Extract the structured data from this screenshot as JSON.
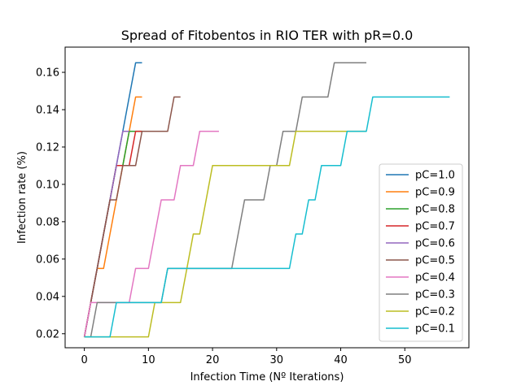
{
  "chart_data": {
    "type": "line",
    "title": "Spread of Fitobentos in RIO TER with pR=0.0",
    "xlabel": "Infection Time (Nº Iterations)",
    "ylabel": "Infection rate (%)",
    "xlim": [
      -3,
      60
    ],
    "ylim": [
      0.0125,
      0.1735
    ],
    "xticks": [
      0,
      10,
      20,
      30,
      40,
      50
    ],
    "yticks": [
      0.02,
      0.04,
      0.06,
      0.08,
      0.1,
      0.12,
      0.14,
      0.16
    ],
    "ytick_labels": [
      "0.02",
      "0.04",
      "0.06",
      "0.08",
      "0.10",
      "0.12",
      "0.14",
      "0.16"
    ],
    "grid": false,
    "legend_position": "lower-right",
    "series": [
      {
        "name": "pC=1.0",
        "color": "#1f77b4",
        "x": [
          0,
          1,
          2,
          3,
          4,
          5,
          6,
          7,
          8,
          9
        ],
        "y": [
          0.0183,
          0.0367,
          0.055,
          0.0734,
          0.0917,
          0.1101,
          0.1284,
          0.1468,
          0.1651,
          0.1651
        ]
      },
      {
        "name": "pC=0.9",
        "color": "#ff7f0e",
        "x": [
          0,
          1,
          2,
          3,
          4,
          5,
          6,
          7,
          8,
          9
        ],
        "y": [
          0.0183,
          0.0367,
          0.055,
          0.055,
          0.0734,
          0.0917,
          0.1101,
          0.1284,
          0.1468,
          0.1468
        ]
      },
      {
        "name": "pC=0.8",
        "color": "#2ca02c",
        "x": [
          0,
          1,
          2,
          3,
          4,
          5,
          6,
          7,
          8,
          9
        ],
        "y": [
          0.0183,
          0.0367,
          0.055,
          0.0734,
          0.0917,
          0.1101,
          0.1101,
          0.1284,
          0.1284,
          0.1284
        ]
      },
      {
        "name": "pC=0.7",
        "color": "#d62728",
        "x": [
          0,
          1,
          2,
          3,
          4,
          5,
          6,
          7,
          8,
          9
        ],
        "y": [
          0.0183,
          0.0367,
          0.055,
          0.0734,
          0.0917,
          0.1101,
          0.1101,
          0.1101,
          0.1284,
          0.1284
        ]
      },
      {
        "name": "pC=0.6",
        "color": "#9467bd",
        "x": [
          0,
          1,
          2,
          3,
          4,
          5,
          6,
          7
        ],
        "y": [
          0.0183,
          0.0367,
          0.055,
          0.0734,
          0.0917,
          0.1101,
          0.1284,
          0.1284
        ]
      },
      {
        "name": "pC=0.5",
        "color": "#8c564b",
        "x": [
          0,
          1,
          2,
          3,
          4,
          5,
          6,
          7,
          8,
          9,
          10,
          11,
          12,
          13,
          14,
          15
        ],
        "y": [
          0.0183,
          0.0367,
          0.055,
          0.0734,
          0.0917,
          0.0917,
          0.1101,
          0.1101,
          0.1101,
          0.1284,
          0.1284,
          0.1284,
          0.1284,
          0.1284,
          0.1468,
          0.1468
        ]
      },
      {
        "name": "pC=0.4",
        "color": "#e377c2",
        "x": [
          0,
          1,
          2,
          3,
          4,
          5,
          6,
          7,
          8,
          9,
          10,
          11,
          12,
          13,
          14,
          15,
          16,
          17,
          18,
          19,
          20,
          21
        ],
        "y": [
          0.0183,
          0.0367,
          0.0367,
          0.0367,
          0.0367,
          0.0367,
          0.0367,
          0.0367,
          0.055,
          0.055,
          0.055,
          0.0734,
          0.0917,
          0.0917,
          0.0917,
          0.1101,
          0.1101,
          0.1101,
          0.1284,
          0.1284,
          0.1284,
          0.1284
        ]
      },
      {
        "name": "pC=0.3",
        "color": "#7f7f7f",
        "x": [
          0,
          1,
          2,
          3,
          4,
          5,
          6,
          7,
          8,
          9,
          10,
          11,
          12,
          13,
          14,
          15,
          16,
          17,
          18,
          19,
          20,
          21,
          22,
          23,
          24,
          25,
          26,
          27,
          28,
          29,
          30,
          31,
          32,
          33,
          34,
          35,
          36,
          37,
          38,
          39,
          40,
          41,
          42,
          43,
          44
        ],
        "y": [
          0.0183,
          0.0183,
          0.0367,
          0.0367,
          0.0367,
          0.0367,
          0.0367,
          0.0367,
          0.0367,
          0.0367,
          0.0367,
          0.0367,
          0.0367,
          0.055,
          0.055,
          0.055,
          0.055,
          0.055,
          0.055,
          0.055,
          0.055,
          0.055,
          0.055,
          0.055,
          0.0734,
          0.0917,
          0.0917,
          0.0917,
          0.0917,
          0.1101,
          0.1101,
          0.1284,
          0.1284,
          0.1284,
          0.1468,
          0.1468,
          0.1468,
          0.1468,
          0.1468,
          0.1651,
          0.1651,
          0.1651,
          0.1651,
          0.1651,
          0.1651
        ]
      },
      {
        "name": "pC=0.2",
        "color": "#bcbd22",
        "x": [
          0,
          1,
          2,
          3,
          4,
          5,
          6,
          7,
          8,
          9,
          10,
          11,
          12,
          13,
          14,
          15,
          16,
          17,
          18,
          19,
          20,
          21,
          22,
          23,
          24,
          25,
          26,
          27,
          28,
          29,
          30,
          31,
          32,
          33,
          34,
          35,
          36,
          37,
          38,
          39,
          40,
          41,
          42,
          43,
          44
        ],
        "y": [
          0.0183,
          0.0183,
          0.0183,
          0.0183,
          0.0183,
          0.0183,
          0.0183,
          0.0183,
          0.0183,
          0.0183,
          0.0183,
          0.0367,
          0.0367,
          0.0367,
          0.0367,
          0.0367,
          0.055,
          0.0734,
          0.0734,
          0.0917,
          0.1101,
          0.1101,
          0.1101,
          0.1101,
          0.1101,
          0.1101,
          0.1101,
          0.1101,
          0.1101,
          0.1101,
          0.1101,
          0.1101,
          0.1101,
          0.1284,
          0.1284,
          0.1284,
          0.1284,
          0.1284,
          0.1284,
          0.1284,
          0.1284,
          0.1284,
          0.1284,
          0.1284,
          0.1284
        ]
      },
      {
        "name": "pC=0.1",
        "color": "#17becf",
        "x": [
          0,
          1,
          2,
          3,
          4,
          5,
          6,
          7,
          8,
          9,
          10,
          11,
          12,
          13,
          14,
          15,
          16,
          17,
          18,
          19,
          20,
          21,
          22,
          23,
          24,
          25,
          26,
          27,
          28,
          29,
          30,
          31,
          32,
          33,
          34,
          35,
          36,
          37,
          38,
          39,
          40,
          41,
          42,
          43,
          44,
          45,
          46,
          47,
          48,
          49,
          50,
          51,
          52,
          53,
          54,
          55,
          56,
          57
        ],
        "y": [
          0.0183,
          0.0183,
          0.0183,
          0.0183,
          0.0183,
          0.0367,
          0.0367,
          0.0367,
          0.0367,
          0.0367,
          0.0367,
          0.0367,
          0.0367,
          0.055,
          0.055,
          0.055,
          0.055,
          0.055,
          0.055,
          0.055,
          0.055,
          0.055,
          0.055,
          0.055,
          0.055,
          0.055,
          0.055,
          0.055,
          0.055,
          0.055,
          0.055,
          0.055,
          0.055,
          0.0734,
          0.0734,
          0.0917,
          0.0917,
          0.1101,
          0.1101,
          0.1101,
          0.1101,
          0.1284,
          0.1284,
          0.1284,
          0.1284,
          0.1468,
          0.1468,
          0.1468,
          0.1468,
          0.1468,
          0.1468,
          0.1468,
          0.1468,
          0.1468,
          0.1468,
          0.1468,
          0.1468,
          0.1468
        ]
      }
    ]
  }
}
